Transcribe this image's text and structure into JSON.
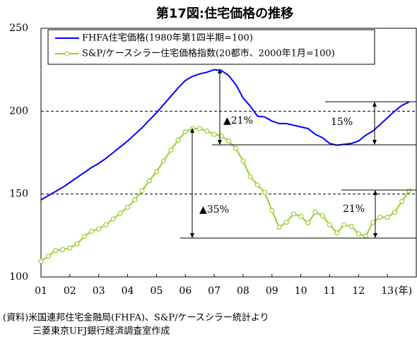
{
  "chart_data": {
    "type": "line",
    "title": "第17図:住宅価格の推移",
    "xlabel": "(年)",
    "source": [
      "(資料)米国連邦住宅金融局(FHFA)、S&P/ケースシラー統計より",
      "三菱東京UFJ銀行経済調査室作成"
    ],
    "x": [
      2001,
      2001.25,
      2001.5,
      2001.75,
      2002,
      2002.25,
      2002.5,
      2002.75,
      2003,
      2003.25,
      2003.5,
      2003.75,
      2004,
      2004.25,
      2004.5,
      2004.75,
      2005,
      2005.25,
      2005.5,
      2005.75,
      2006,
      2006.25,
      2006.5,
      2006.75,
      2007,
      2007.25,
      2007.5,
      2007.75,
      2008,
      2008.25,
      2008.5,
      2008.75,
      2009,
      2009.25,
      2009.5,
      2009.75,
      2010,
      2010.25,
      2010.5,
      2010.75,
      2011,
      2011.25,
      2011.5,
      2011.75,
      2012,
      2012.25,
      2012.5,
      2012.75,
      2013,
      2013.25,
      2013.5,
      2013.75
    ],
    "series": [
      {
        "name": "FHFA住宅価格(1980年第1四半期=100)",
        "color": "#0000ff",
        "marker": false,
        "values": [
          146.5,
          149,
          151.5,
          154,
          157,
          160,
          163,
          166,
          168.5,
          171.5,
          175,
          178.5,
          182,
          186,
          190,
          194.5,
          199,
          204,
          209,
          214,
          218.5,
          221,
          222.5,
          223.5,
          225,
          224.5,
          221.5,
          216,
          208,
          203,
          197,
          196.5,
          194,
          192.5,
          192.5,
          191.5,
          190.5,
          189.5,
          186,
          184,
          180.5,
          179.5,
          180,
          180.5,
          182,
          185.5,
          188,
          192,
          196,
          200,
          203.5,
          205.5
        ]
      },
      {
        "name": "S&P/ケースシラー住宅価格指数(20都市、2000年1月=100)",
        "color": "#9acd32",
        "marker": true,
        "values": [
          109.5,
          112.5,
          116,
          116.5,
          117.5,
          120,
          124.5,
          127.5,
          129,
          131.5,
          135,
          138.5,
          142,
          146.5,
          152,
          158,
          163.5,
          170,
          176.5,
          182.5,
          187.5,
          189.5,
          189.5,
          188,
          186,
          185,
          182,
          177.5,
          170,
          160.5,
          155.5,
          151,
          140,
          130,
          133,
          138,
          136.5,
          132.5,
          139,
          137,
          131.5,
          126.5,
          131.5,
          130.5,
          126,
          124.5,
          133,
          136,
          136,
          139,
          145.5,
          152
        ]
      }
    ],
    "annotations": [
      "▲21%",
      "15%",
      "▲35%",
      "21%"
    ],
    "xlim": [
      2001,
      2014
    ],
    "xticks": [
      {
        "value": 2001,
        "label": "01"
      },
      {
        "value": 2002,
        "label": "02"
      },
      {
        "value": 2003,
        "label": "03"
      },
      {
        "value": 2004,
        "label": "04"
      },
      {
        "value": 2005,
        "label": "05"
      },
      {
        "value": 2006,
        "label": "06"
      },
      {
        "value": 2007,
        "label": "07"
      },
      {
        "value": 2008,
        "label": "08"
      },
      {
        "value": 2009,
        "label": "09"
      },
      {
        "value": 2010,
        "label": "10"
      },
      {
        "value": 2011,
        "label": "11"
      },
      {
        "value": 2012,
        "label": "12"
      },
      {
        "value": 2013,
        "label": "13"
      }
    ],
    "ylim": [
      100,
      250
    ],
    "yticks": [
      100,
      150,
      200,
      250
    ],
    "grid": true
  }
}
